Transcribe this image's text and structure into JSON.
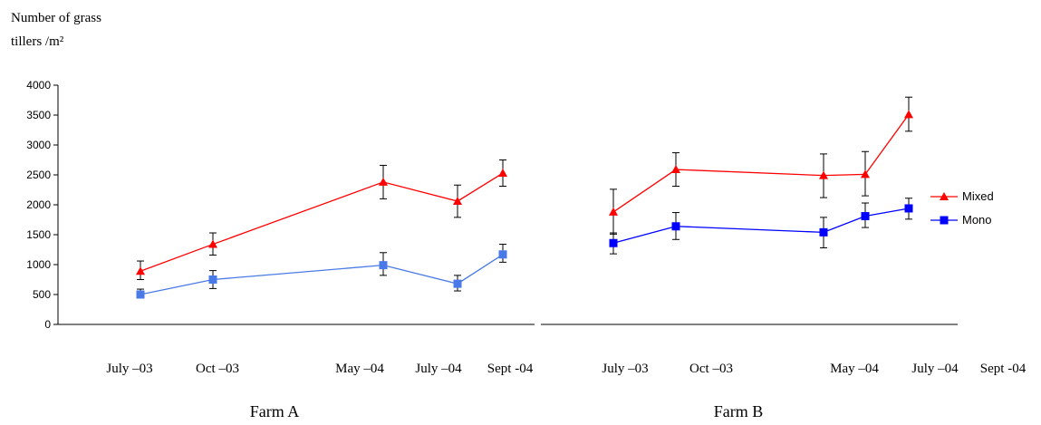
{
  "chart_data": {
    "type": "line",
    "ylabel_lines": [
      "Number of  grass",
      "tillers /m²"
    ],
    "ylim": [
      0,
      4000
    ],
    "yticks": [
      0,
      500,
      1000,
      1500,
      2000,
      2500,
      3000,
      3500,
      4000
    ],
    "grid": false,
    "legend_position": "right",
    "panels": [
      {
        "title": "Farm A",
        "x_labels": [
          "July –03",
          "Oct –03",
          "May –04",
          "July –04",
          "Sept -04"
        ],
        "series": [
          {
            "name": "Mixed",
            "color": "#ff0000",
            "marker": "triangle",
            "values": [
              890,
              1340,
              2380,
              2060,
              2530
            ],
            "err_low": [
              750,
              1160,
              2100,
              1790,
              2310
            ],
            "err_high": [
              1060,
              1530,
              2660,
              2330,
              2750
            ]
          },
          {
            "name": "Mono",
            "color": "#4a7ae8",
            "marker": "square",
            "values": [
              500,
              750,
              990,
              680,
              1170
            ],
            "err_low": [
              440,
              600,
              820,
              560,
              1040
            ],
            "err_high": [
              590,
              900,
              1200,
              820,
              1340
            ]
          }
        ]
      },
      {
        "title": "Farm B",
        "x_labels": [
          "July –03",
          "Oct –03",
          "May –04",
          "July –04",
          "Sept -04"
        ],
        "series": [
          {
            "name": "Mixed",
            "color": "#ff0000",
            "marker": "triangle",
            "values": [
              1880,
              2590,
              2490,
              2510,
              3510
            ],
            "err_low": [
              1510,
              2310,
              2120,
              2150,
              3230
            ],
            "err_high": [
              2260,
              2870,
              2850,
              2890,
              3800
            ]
          },
          {
            "name": "Mono",
            "color": "#0000ff",
            "marker": "square",
            "values": [
              1360,
              1640,
              1540,
              1810,
              1940
            ],
            "err_low": [
              1180,
              1420,
              1280,
              1620,
              1760
            ],
            "err_high": [
              1530,
              1870,
              1790,
              2030,
              2110
            ]
          }
        ]
      }
    ],
    "legend": [
      {
        "name": "Mixed",
        "color": "#ff0000",
        "marker": "triangle"
      },
      {
        "name": "Mono",
        "color": "#0000ff",
        "marker": "square"
      }
    ]
  }
}
